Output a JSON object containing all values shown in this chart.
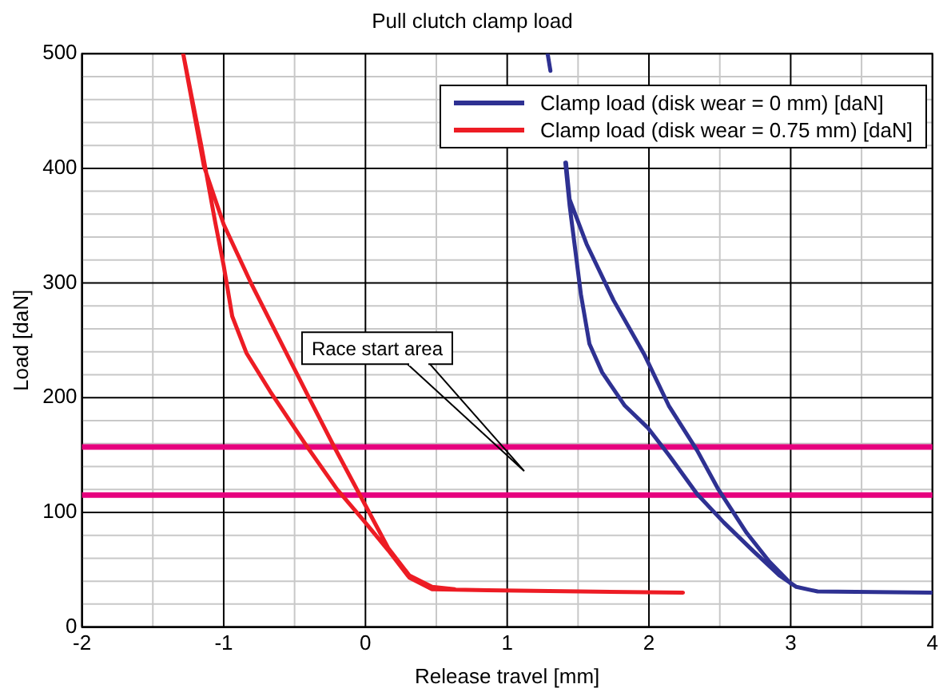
{
  "chart_data": {
    "type": "line",
    "title": "Pull clutch clamp load",
    "xlabel": "Release travel [mm]",
    "ylabel": "Load [daN]",
    "xlim": [
      -2,
      4
    ],
    "xticks": [
      -2,
      -1,
      0,
      1,
      2,
      3,
      4
    ],
    "ylim": [
      0,
      500
    ],
    "yticks": [
      0,
      100,
      200,
      300,
      400,
      500
    ],
    "grid": true,
    "legend": "top right",
    "marker": "none",
    "line_style": "solid",
    "series": [
      {
        "name": "Clamp load (disk wear = 0 mm) [daN]",
        "color": "#2e3192",
        "x": [
          1.285,
          1.305,
          null,
          1.41,
          1.44,
          1.52,
          1.58,
          1.67,
          1.83,
          1.99,
          2.14,
          2.34,
          2.53,
          2.73,
          2.92,
          3.04,
          3.19,
          4.0,
          null,
          3.0,
          2.85,
          2.69,
          2.49,
          2.34,
          2.14,
          1.97,
          1.75,
          1.56,
          1.44,
          1.415
        ],
        "values": [
          500,
          485,
          null,
          405,
          368,
          290,
          247,
          222,
          193,
          174,
          150,
          116,
          91,
          67,
          45,
          35,
          31,
          30,
          null,
          38,
          57,
          82,
          120,
          154,
          193,
          237,
          285,
          334,
          373,
          405
        ]
      },
      {
        "name": "Clamp load (disk wear = 0.75 mm) [daN]",
        "color": "#ed1c24",
        "x": [
          0.63,
          0.47,
          0.31,
          0.16,
          0.0,
          -0.22,
          -0.39,
          -0.55,
          -0.8,
          -1.0,
          -1.14,
          -1.286,
          -1.16,
          -1.06,
          -1.0,
          -0.94,
          -0.84,
          -0.67,
          -0.41,
          -0.2,
          -0.02,
          0.16,
          0.31,
          0.47,
          0.86,
          2.24
        ],
        "values": [
          33,
          35,
          45,
          69,
          106,
          157,
          198,
          237,
          298,
          351,
          402,
          500,
          421,
          353,
          315,
          271,
          239,
          205,
          157,
          120,
          94,
          67,
          43,
          33,
          32,
          30
        ]
      }
    ],
    "ref_lines": [
      {
        "axis": "y",
        "value": 157,
        "color": "#e6007e"
      },
      {
        "axis": "y",
        "value": 115,
        "color": "#e6007e"
      }
    ],
    "annotations": [
      "Race start area"
    ]
  }
}
